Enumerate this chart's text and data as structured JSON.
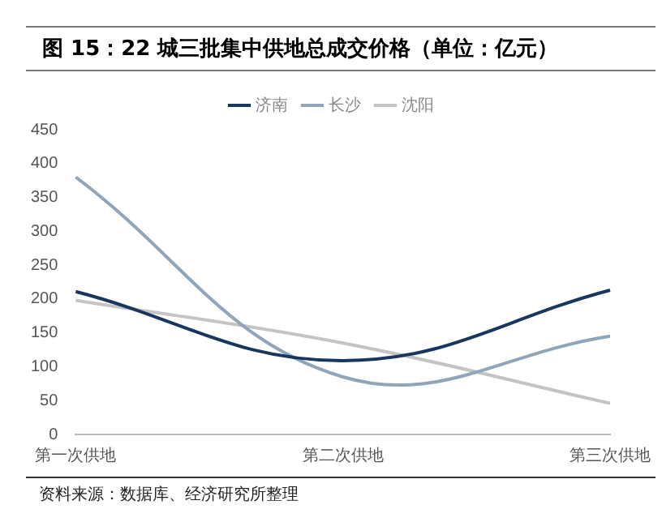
{
  "chart_data": {
    "type": "line",
    "title": "图 15：22 城三批集中供地总成交价格（单位：亿元）",
    "categories": [
      "第一次供地",
      "第二次供地",
      "第三次供地"
    ],
    "series": [
      {
        "name": "济南",
        "color": "#17375e",
        "values": [
          211,
          109,
          213
        ]
      },
      {
        "name": "长沙",
        "color": "#8fa5ba",
        "values": [
          380,
          85,
          145
        ]
      },
      {
        "name": "沈阳",
        "color": "#c4c4c4",
        "values": [
          198,
          135,
          46
        ]
      }
    ],
    "ylim": [
      0,
      450
    ],
    "yticks": [
      0,
      50,
      100,
      150,
      200,
      250,
      300,
      350,
      400,
      450
    ],
    "grid": false,
    "legend": "top",
    "marker": "none",
    "line_style": "solid",
    "annotations": [
      "资料来源：数据库、经济研究所整理"
    ]
  }
}
